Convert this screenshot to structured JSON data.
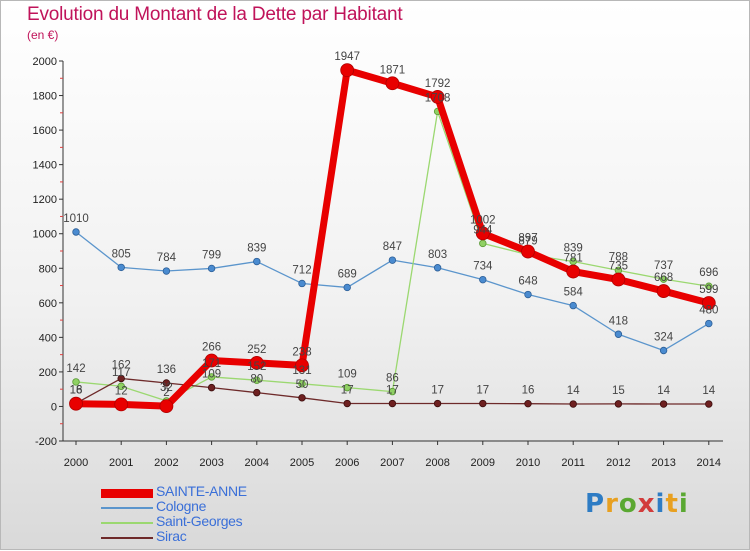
{
  "header": {
    "title": "Evolution du Montant de la Dette par Habitant",
    "unit": "(en €)"
  },
  "colors": {
    "SAINTE-ANNE": "#e80000",
    "Cologne": "#5b95cc",
    "Saint-Georges": "#9bd870",
    "Sirac": "#6e2a2a"
  },
  "logo": {
    "letters": [
      "P",
      "r",
      "o",
      "x",
      "i",
      "t",
      "i"
    ]
  },
  "chart_data": {
    "type": "line",
    "title": "Evolution du Montant de la Dette par Habitant",
    "ylabel": "(en €)",
    "xlabel": "",
    "ylim": [
      -200,
      2000
    ],
    "yticks": [
      -200,
      0,
      200,
      400,
      600,
      800,
      1000,
      1200,
      1400,
      1600,
      1800,
      2000
    ],
    "categories": [
      "2000",
      "2001",
      "2002",
      "2003",
      "2004",
      "2005",
      "2006",
      "2007",
      "2008",
      "2009",
      "2010",
      "2011",
      "2012",
      "2013",
      "2014"
    ],
    "grid": false,
    "legend": "bottom-left",
    "series": [
      {
        "name": "SAINTE-ANNE",
        "values": [
          16,
          12,
          2,
          266,
          252,
          238,
          1947,
          1871,
          1792,
          1002,
          897,
          781,
          735,
          668,
          599
        ],
        "labels": [
          "16",
          "12",
          "2",
          "266",
          "252",
          "238",
          "1947",
          "1871",
          "1792",
          "1002",
          "897",
          "781",
          "735",
          "668",
          "599"
        ]
      },
      {
        "name": "Cologne",
        "values": [
          1010,
          805,
          784,
          799,
          839,
          712,
          689,
          847,
          803,
          734,
          648,
          584,
          418,
          324,
          480
        ],
        "labels": [
          "1010",
          "805",
          "784",
          "799",
          "839",
          "712",
          "689",
          "847",
          "803",
          "734",
          "648",
          "584",
          "418",
          "324",
          "480"
        ]
      },
      {
        "name": "Saint-Georges",
        "values": [
          142,
          117,
          32,
          171,
          152,
          131,
          109,
          86,
          1708,
          944,
          879,
          839,
          788,
          737,
          696
        ],
        "labels": [
          "142",
          "117",
          "32",
          "171",
          "152",
          "131",
          "109",
          "86",
          "1708",
          "944",
          "879",
          "839",
          "788",
          "737",
          "696"
        ]
      },
      {
        "name": "Sirac",
        "values": [
          18,
          162,
          136,
          109,
          80,
          50,
          17,
          17,
          17,
          17,
          16,
          14,
          15,
          14,
          14
        ],
        "labels": [
          "18",
          "162",
          "136",
          "109",
          "80",
          "50",
          "17",
          "17",
          "17",
          "17",
          "16",
          "14",
          "15",
          "14",
          "14"
        ]
      }
    ]
  }
}
